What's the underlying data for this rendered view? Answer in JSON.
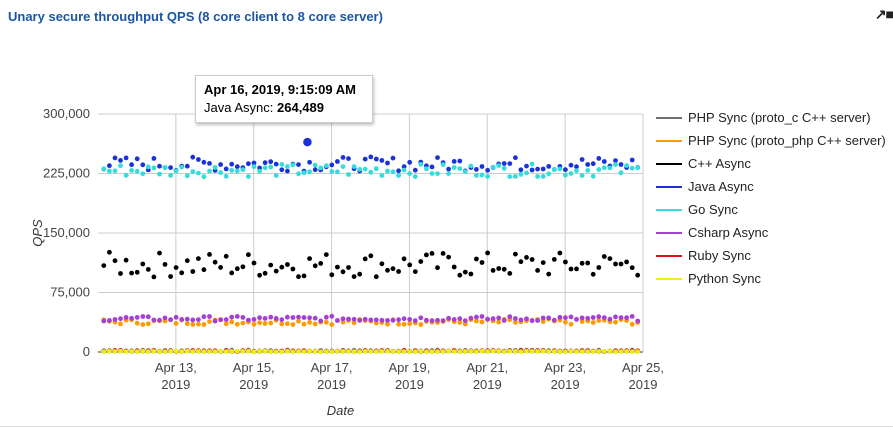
{
  "page": {
    "title": "Unary secure throughput QPS (8 core client to 8 core server)"
  },
  "tooltip": {
    "date": "Apr 16, 2019, 9:15:09 AM",
    "series": "Java Async:",
    "value": "264,489"
  },
  "chart_data": {
    "type": "scatter",
    "title": "Unary secure throughput QPS (8 core client to 8 core server)",
    "xlabel": "Date",
    "ylabel": "QPS",
    "ylim": [
      0,
      300000
    ],
    "xlim": [
      "2019-04-11",
      "2019-04-25"
    ],
    "yticks": [
      0,
      75000,
      150000,
      225000,
      300000
    ],
    "ytick_labels": [
      "0",
      "75,000",
      "150,000",
      "225,000",
      "300,000"
    ],
    "xticks": [
      "2019-04-13",
      "2019-04-15",
      "2019-04-17",
      "2019-04-19",
      "2019-04-21",
      "2019-04-23",
      "2019-04-25"
    ],
    "xtick_labels": [
      [
        "Apr 13,",
        "2019"
      ],
      [
        "Apr 15,",
        "2019"
      ],
      [
        "Apr 17,",
        "2019"
      ],
      [
        "Apr 19,",
        "2019"
      ],
      [
        "Apr 21,",
        "2019"
      ],
      [
        "Apr 23,",
        "2019"
      ],
      [
        "Apr 25,",
        "2019"
      ]
    ],
    "grid": true,
    "legend_position": "right",
    "highlight": {
      "series": "Java Async",
      "x": "2019-04-16",
      "y": 264489
    },
    "series": [
      {
        "name": "PHP Sync (proto_c C++ server)",
        "color": "#6e6e6e",
        "level": 1500,
        "spread": 800
      },
      {
        "name": "PHP Sync (proto_php C++ server)",
        "color": "#ff9900",
        "level": 38000,
        "spread": 3500
      },
      {
        "name": "C++ Async",
        "color": "#000000",
        "level": 110000,
        "spread": 16000
      },
      {
        "name": "Java Async",
        "color": "#1a33d9",
        "level": 237000,
        "spread": 9000
      },
      {
        "name": "Go Sync",
        "color": "#33dddd",
        "level": 229000,
        "spread": 8000
      },
      {
        "name": "Csharp Async",
        "color": "#a63fd6",
        "level": 42000,
        "spread": 3000
      },
      {
        "name": "Ruby Sync",
        "color": "#dd1111",
        "level": 1200,
        "spread": 800
      },
      {
        "name": "Python Sync",
        "color": "#eeee11",
        "level": 600,
        "spread": 400
      }
    ]
  }
}
